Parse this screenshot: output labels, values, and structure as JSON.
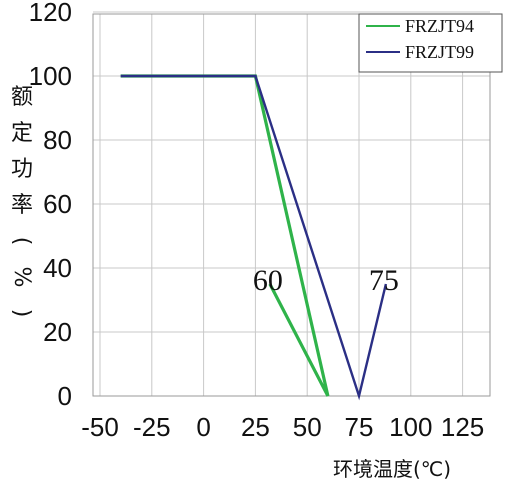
{
  "chart_data": {
    "type": "line",
    "title": "",
    "xlabel": "环境温度(℃)",
    "ylabel": "额定功率(%)",
    "xlim": [
      -50,
      150
    ],
    "ylim": [
      0,
      120
    ],
    "x_ticks": [
      "-50",
      "-25",
      "0",
      "25",
      "50",
      "75",
      "100",
      "125"
    ],
    "y_ticks": [
      "120",
      "100",
      "80",
      "60",
      "40",
      "20",
      "0"
    ],
    "grid": true,
    "legend_position": "top-right",
    "series": [
      {
        "name": "FRZJT94",
        "color": "#2fb34a",
        "points": [
          [
            -40,
            100
          ],
          [
            25,
            100
          ],
          [
            60,
            0
          ],
          [
            32,
            35
          ]
        ]
      },
      {
        "name": "FRZJT99",
        "color": "#2b2f85",
        "points": [
          [
            -40,
            100
          ],
          [
            25,
            100
          ],
          [
            75,
            0
          ],
          [
            88,
            35
          ]
        ]
      }
    ],
    "annotations": [
      {
        "text": "60",
        "x": 32,
        "y": 36
      },
      {
        "text": "75",
        "x": 88,
        "y": 36
      }
    ]
  }
}
